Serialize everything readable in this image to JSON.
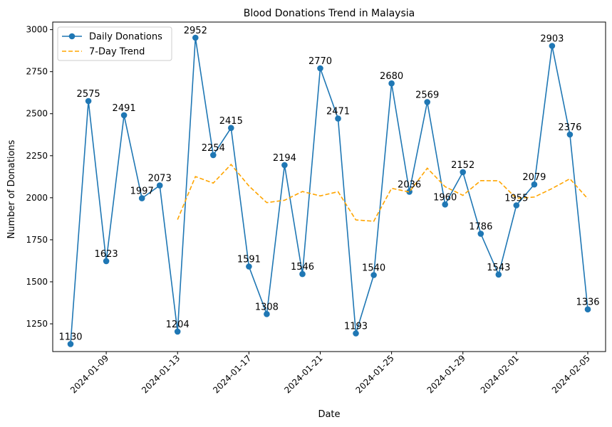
{
  "chart_data": {
    "type": "line",
    "title": "Blood Donations Trend in Malaysia",
    "xlabel": "Date",
    "ylabel": "Number of Donations",
    "x_start": "2024-01-07",
    "x_tick_labels": [
      "2024-01-09",
      "2024-01-13",
      "2024-01-17",
      "2024-01-21",
      "2024-01-25",
      "2024-01-29",
      "2024-02-01",
      "2024-02-05"
    ],
    "y_ticks": [
      1250,
      1500,
      1750,
      2000,
      2250,
      2500,
      2750,
      3000
    ],
    "xlim": [
      "2024-01-06",
      "2024-02-06"
    ],
    "ylim": [
      1085,
      3045
    ],
    "grid": false,
    "legend_position": "upper left",
    "series": [
      {
        "name": "Daily Donations",
        "color": "#1f77b4",
        "style": "solid",
        "marker": "circle",
        "x": [
          "2024-01-07",
          "2024-01-08",
          "2024-01-09",
          "2024-01-10",
          "2024-01-11",
          "2024-01-12",
          "2024-01-13",
          "2024-01-14",
          "2024-01-15",
          "2024-01-16",
          "2024-01-17",
          "2024-01-18",
          "2024-01-19",
          "2024-01-20",
          "2024-01-21",
          "2024-01-22",
          "2024-01-23",
          "2024-01-24",
          "2024-01-25",
          "2024-01-26",
          "2024-01-27",
          "2024-01-28",
          "2024-01-29",
          "2024-01-30",
          "2024-01-31",
          "2024-02-01",
          "2024-02-02",
          "2024-02-03",
          "2024-02-04",
          "2024-02-05"
        ],
        "values": [
          1130,
          2575,
          1623,
          2491,
          1997,
          2073,
          1204,
          2952,
          2254,
          2415,
          1591,
          1308,
          2194,
          1546,
          2770,
          2471,
          1193,
          1540,
          2680,
          2036,
          2569,
          1960,
          2152,
          1786,
          1543,
          1955,
          2079,
          2903,
          2376,
          1336
        ]
      },
      {
        "name": "7-Day Trend",
        "color": "#ffa500",
        "style": "dashed",
        "marker": "none",
        "x": [
          "2024-01-13",
          "2024-01-14",
          "2024-01-15",
          "2024-01-16",
          "2024-01-17",
          "2024-01-18",
          "2024-01-19",
          "2024-01-20",
          "2024-01-21",
          "2024-01-22",
          "2024-01-23",
          "2024-01-24",
          "2024-01-25",
          "2024-01-26",
          "2024-01-27",
          "2024-01-28",
          "2024-01-29",
          "2024-01-30",
          "2024-01-31",
          "2024-02-01",
          "2024-02-02",
          "2024-02-03",
          "2024-02-04",
          "2024-02-05"
        ],
        "values": [
          1870,
          2126,
          2087,
          2198,
          2070,
          1971,
          1985,
          2037,
          2011,
          2036,
          1868,
          1860,
          2056,
          2034,
          2176,
          2066,
          2014,
          2102,
          2101,
          1996,
          2004,
          2055,
          2113,
          1994
        ]
      }
    ]
  }
}
